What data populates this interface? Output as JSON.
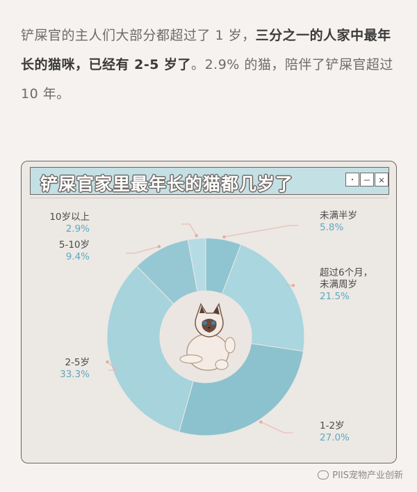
{
  "intro": {
    "part1": "铲屎官的主人们大部分都超过了 1 岁，",
    "bold": "三分之一的人家中最年长的猫咪，已经有 2-5 岁了",
    "part2": "。2.9% 的猫，陪伴了铲屎官超过 10 年。"
  },
  "window": {
    "title": "铲屎官家里最年长的猫都几岁了",
    "buttons": [
      "·",
      "—",
      "✕"
    ]
  },
  "chart_data": {
    "type": "pie",
    "title": "铲屎官家里最年长的猫都几岁了",
    "slices": [
      {
        "label": "未满半岁",
        "value": 5.8,
        "display": "5.8%",
        "color": "#8ec5d1"
      },
      {
        "label": "超过6个月，未满周岁",
        "value": 21.5,
        "display": "21.5%",
        "color": "#a9d6df"
      },
      {
        "label": "1-2岁",
        "value": 27.0,
        "display": "27.0%",
        "color": "#8cc2cd"
      },
      {
        "label": "2-5岁",
        "value": 33.3,
        "display": "33.3%",
        "color": "#a6d3dc"
      },
      {
        "label": "5-10岁",
        "value": 9.4,
        "display": "9.4%",
        "color": "#96c8d3"
      },
      {
        "label": "10岁以上",
        "value": 2.9,
        "display": "2.9%",
        "color": "#b5dce4"
      }
    ],
    "label_names": {
      "s0": "未满半岁",
      "s1a": "超过6个月，",
      "s1b": "未满周岁",
      "s2": "1-2岁",
      "s3": "2-5岁",
      "s4": "5-10岁",
      "s5": "10岁以上"
    },
    "center_icon": "ragdoll-cat-illustration"
  },
  "watermark": "PIIS宠物产业创新"
}
